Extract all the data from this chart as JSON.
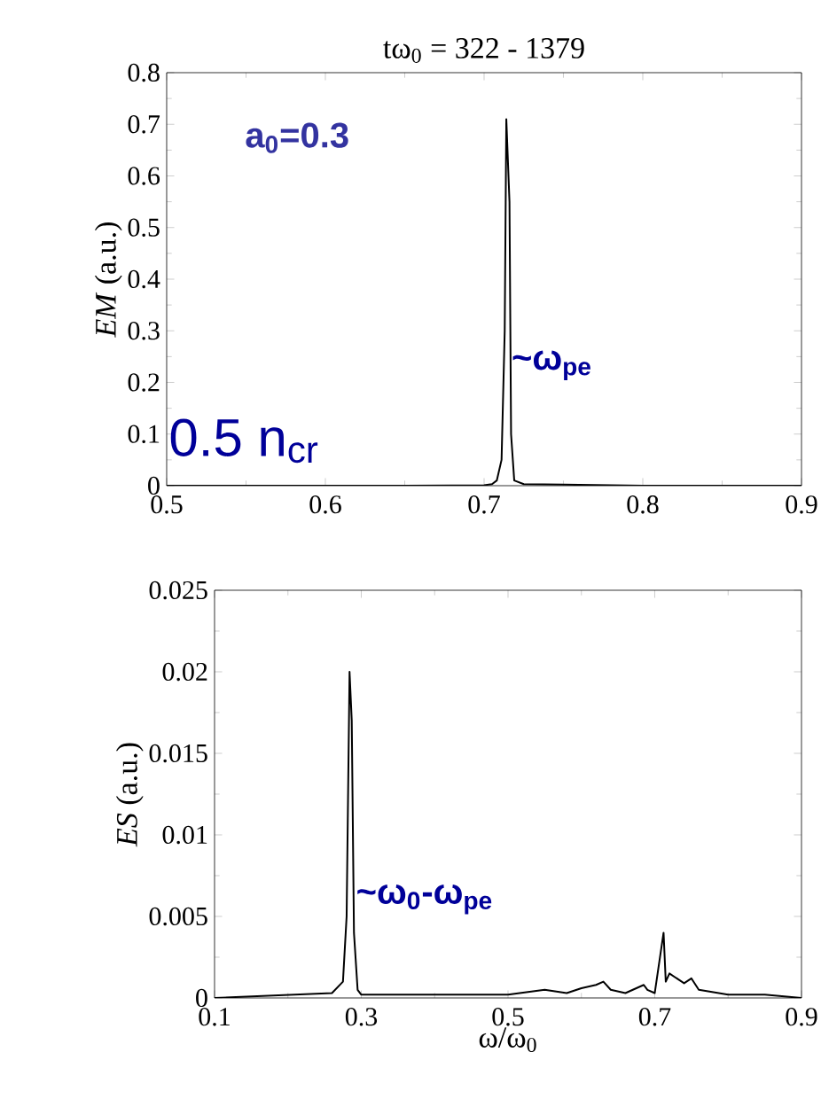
{
  "chart_data": [
    {
      "type": "line",
      "title": "tω$_{0}$ = 322 - 1379",
      "ylabel": "*EM* (a.u.)",
      "x": [
        0.5,
        0.65,
        0.7,
        0.705,
        0.708,
        0.711,
        0.713,
        0.714,
        0.716,
        0.717,
        0.719,
        0.725,
        0.75,
        0.8,
        0.9
      ],
      "series": [
        {
          "color": "#000000",
          "values": [
            0,
            0,
            0.001,
            0.003,
            0.01,
            0.05,
            0.3,
            0.71,
            0.55,
            0.1,
            0.01,
            0.003,
            0.002,
            0,
            0
          ]
        }
      ],
      "xlim": [
        0.5,
        0.9
      ],
      "xticks": [
        0.5,
        0.6,
        0.7,
        0.8,
        0.9
      ],
      "ylim": [
        0,
        0.8
      ],
      "yticks": [
        0,
        0.1,
        0.2,
        0.3,
        0.4,
        0.5,
        0.6,
        0.7,
        0.8
      ],
      "annotations": [
        "a$_{0}$=0.3",
        "0.5 n$_{cr}$",
        {
          "text": "~ω$_{pe}$",
          "x": 0.716,
          "y": 0.2
        }
      ]
    },
    {
      "type": "line",
      "xlabel": "ω/ω$_{0}$",
      "ylabel": "*ES* (a.u.)",
      "x": [
        0.1,
        0.26,
        0.275,
        0.28,
        0.284,
        0.287,
        0.29,
        0.295,
        0.3,
        0.5,
        0.55,
        0.58,
        0.6,
        0.62,
        0.63,
        0.64,
        0.66,
        0.685,
        0.69,
        0.7,
        0.712,
        0.715,
        0.72,
        0.73,
        0.74,
        0.75,
        0.76,
        0.8,
        0.85,
        0.9
      ],
      "series": [
        {
          "color": "#000000",
          "values": [
            0,
            0.0003,
            0.001,
            0.005,
            0.02,
            0.017,
            0.004,
            0.0005,
            0.0002,
            0.0002,
            0.0005,
            0.0003,
            0.0006,
            0.0008,
            0.001,
            0.0005,
            0.0003,
            0.0008,
            0.0005,
            0.0003,
            0.004,
            0.001,
            0.0015,
            0.0012,
            0.0009,
            0.0012,
            0.0005,
            0.0002,
            0.0002,
            0
          ]
        }
      ],
      "xlim": [
        0.1,
        0.9
      ],
      "xticks": [
        0.1,
        0.3,
        0.5,
        0.7,
        0.9
      ],
      "ylim": [
        0,
        0.025
      ],
      "yticks": [
        0,
        0.005,
        0.01,
        0.015,
        0.02,
        0.025
      ],
      "annotations": [
        {
          "text": "~ω$_{0}$-ω$_{pe}$",
          "x": 0.29,
          "y": 0.005
        }
      ]
    }
  ]
}
